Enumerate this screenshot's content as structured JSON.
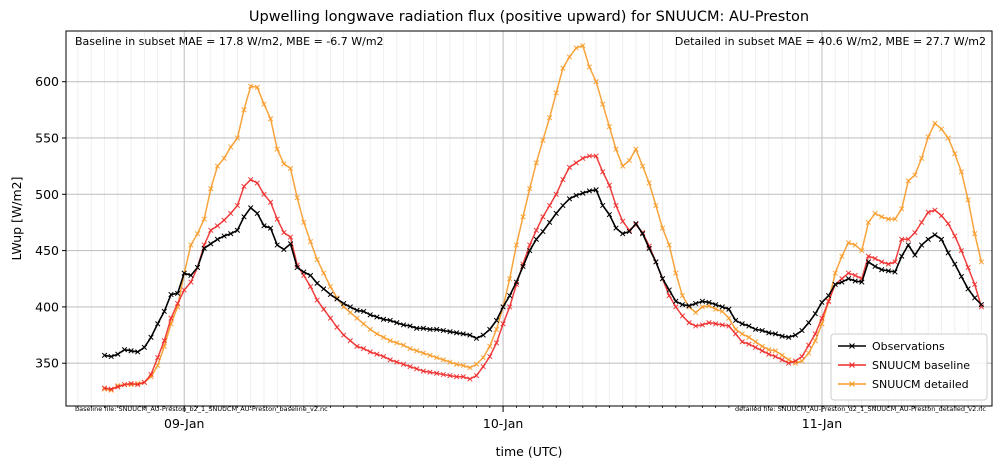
{
  "chart_data": {
    "type": "line",
    "title": "Upwelling longwave radiation flux (positive upward) for SNUUCM: AU-Preston",
    "xlabel": "time (UTC)",
    "ylabel": "LWup [W/m2]",
    "x_ticks": [
      "09-Jan",
      "10-Jan",
      "11-Jan"
    ],
    "x_tick_hours": [
      24,
      48,
      72
    ],
    "xlim_hours": [
      15.1,
      84.8
    ],
    "ylim": [
      312,
      645
    ],
    "y_ticks": [
      350,
      400,
      450,
      500,
      550,
      600
    ],
    "grid": true,
    "legend_position": "lower right",
    "annotations": {
      "baseline_stats": "Baseline in subset MAE = 17.8 W/m2, MBE = -6.7 W/m2",
      "detailed_stats": "Detailed in subset MAE = 40.6 W/m2, MBE = 27.7 W/m2",
      "baseline_file": "baseline file: SNUUCM_AU-Preston_b2_1_SNUUCM_AU-Preston_baseline_v2.nc",
      "detailed_file": "detailed file: SNUUCM_AU-Preston_d2_1_SNUUCM_AU-Preston_detailed_v2.nc"
    },
    "x_hours_start": 18,
    "x_hours_step": 0.5,
    "series": [
      {
        "name": "Observations",
        "color": "#000000",
        "values": [
          357,
          356,
          358,
          362,
          361,
          360,
          364,
          373,
          385,
          396,
          411,
          412,
          430,
          428,
          435,
          452,
          456,
          460,
          463,
          465,
          468,
          480,
          488,
          483,
          472,
          470,
          455,
          451,
          456,
          435,
          431,
          428,
          421,
          416,
          411,
          407,
          403,
          400,
          397,
          396,
          393,
          391,
          389,
          388,
          386,
          384,
          383,
          381,
          381,
          380,
          380,
          379,
          378,
          377,
          376,
          375,
          372,
          375,
          380,
          388,
          400,
          410,
          422,
          436,
          450,
          460,
          467,
          475,
          483,
          490,
          496,
          499,
          501,
          503,
          504,
          490,
          482,
          470,
          465,
          467,
          474,
          465,
          452,
          440,
          425,
          415,
          405,
          402,
          401,
          403,
          405,
          404,
          402,
          400,
          398,
          388,
          385,
          383,
          380,
          379,
          377,
          376,
          374,
          373,
          375,
          379,
          386,
          394,
          404,
          410,
          420,
          422,
          425,
          423,
          422,
          440,
          436,
          433,
          432,
          431,
          445,
          455,
          446,
          455,
          460,
          464,
          460,
          448,
          438,
          427,
          416,
          408,
          402
        ]
      },
      {
        "name": "SNUUCM baseline",
        "color": "#ee2a2a",
        "values": [
          328,
          327,
          329,
          331,
          332,
          331,
          333,
          340,
          355,
          370,
          390,
          403,
          415,
          422,
          435,
          455,
          468,
          472,
          477,
          483,
          490,
          507,
          513,
          510,
          500,
          493,
          478,
          466,
          462,
          437,
          428,
          418,
          406,
          398,
          390,
          382,
          375,
          370,
          365,
          363,
          360,
          358,
          356,
          353,
          351,
          349,
          347,
          345,
          343,
          342,
          341,
          340,
          339,
          338,
          338,
          336,
          339,
          347,
          356,
          368,
          385,
          400,
          420,
          438,
          455,
          468,
          480,
          490,
          500,
          513,
          524,
          528,
          532,
          534,
          534,
          520,
          508,
          490,
          476,
          468,
          473,
          466,
          454,
          440,
          425,
          410,
          400,
          392,
          386,
          383,
          384,
          386,
          385,
          384,
          383,
          376,
          369,
          367,
          364,
          361,
          358,
          356,
          353,
          350,
          352,
          356,
          366,
          376,
          390,
          405,
          420,
          425,
          430,
          428,
          425,
          445,
          443,
          440,
          438,
          440,
          460,
          460,
          466,
          475,
          484,
          486,
          481,
          474,
          463,
          450,
          435,
          420,
          400
        ]
      },
      {
        "name": "SNUUCM detailed",
        "color": "#f79a27",
        "values": [
          327,
          326,
          330,
          331,
          331,
          332,
          333,
          338,
          348,
          365,
          385,
          400,
          430,
          455,
          465,
          478,
          505,
          525,
          532,
          542,
          550,
          575,
          596,
          595,
          580,
          567,
          540,
          527,
          523,
          497,
          475,
          458,
          442,
          430,
          418,
          408,
          400,
          395,
          390,
          385,
          380,
          376,
          373,
          370,
          368,
          366,
          363,
          361,
          359,
          357,
          355,
          353,
          351,
          349,
          348,
          346,
          349,
          355,
          365,
          380,
          400,
          425,
          455,
          480,
          505,
          528,
          548,
          568,
          590,
          612,
          622,
          630,
          632,
          613,
          600,
          580,
          560,
          540,
          525,
          530,
          540,
          525,
          510,
          490,
          470,
          455,
          430,
          410,
          400,
          395,
          400,
          401,
          398,
          396,
          390,
          380,
          376,
          373,
          369,
          365,
          362,
          361,
          357,
          353,
          350,
          352,
          359,
          370,
          385,
          405,
          430,
          445,
          457,
          455,
          450,
          475,
          483,
          480,
          478,
          478,
          487,
          512,
          517,
          532,
          551,
          563,
          558,
          550,
          536,
          520,
          495,
          465,
          440
        ]
      }
    ]
  }
}
